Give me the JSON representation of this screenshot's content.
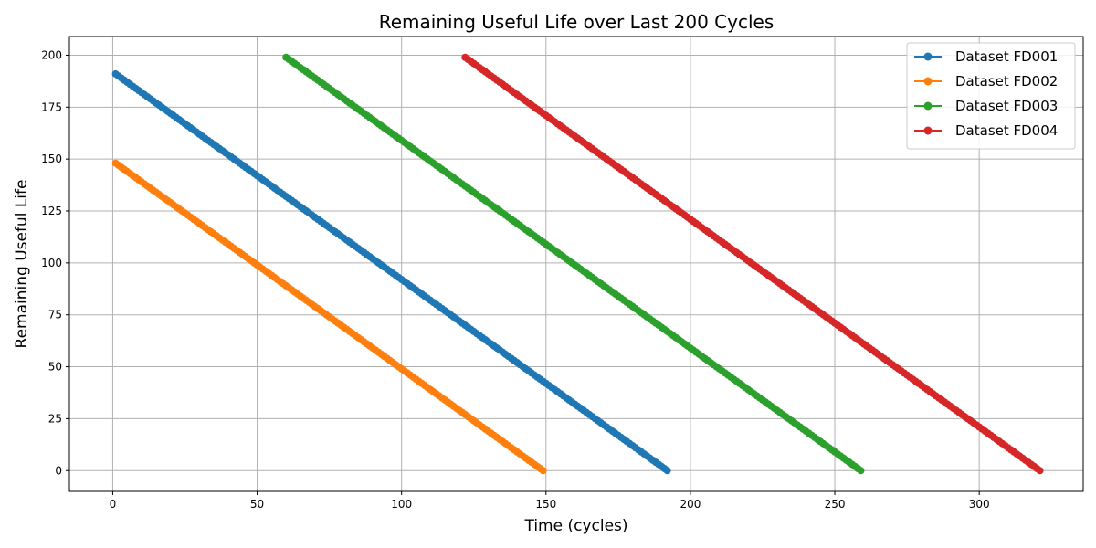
{
  "chart_data": {
    "type": "line",
    "title": "Remaining Useful Life over Last 200 Cycles",
    "xlabel": "Time (cycles)",
    "ylabel": "Remaining Useful Life",
    "xlim": [
      -15,
      336
    ],
    "ylim": [
      -10,
      209
    ],
    "xticks": [
      0,
      50,
      100,
      150,
      200,
      250,
      300
    ],
    "yticks": [
      0,
      25,
      50,
      75,
      100,
      125,
      150,
      175,
      200
    ],
    "grid": true,
    "legend_position": "upper right",
    "markers": true,
    "series": [
      {
        "name": "Dataset FD001",
        "color": "#1f77b4",
        "x_start": 1,
        "x_end": 192,
        "y_start": 191,
        "y_end": 0
      },
      {
        "name": "Dataset FD002",
        "color": "#ff7f0e",
        "x_start": 1,
        "x_end": 149,
        "y_start": 148,
        "y_end": 0
      },
      {
        "name": "Dataset FD003",
        "color": "#2ca02c",
        "x_start": 60,
        "x_end": 259,
        "y_start": 199,
        "y_end": 0
      },
      {
        "name": "Dataset FD004",
        "color": "#d62728",
        "x_start": 122,
        "x_end": 321,
        "y_start": 199,
        "y_end": 0
      }
    ]
  }
}
